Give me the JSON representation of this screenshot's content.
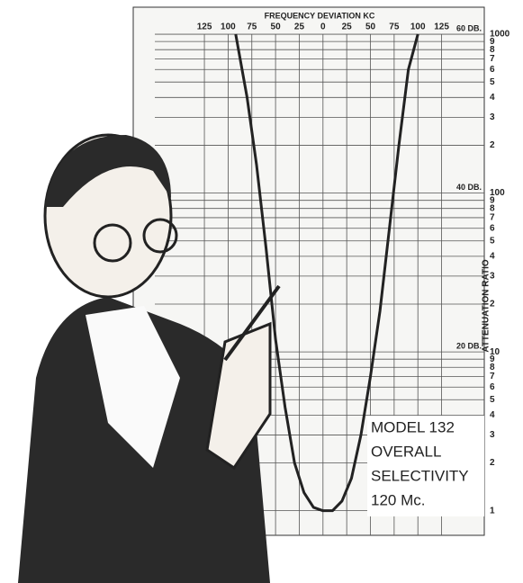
{
  "chart_data": {
    "type": "line",
    "title": "FREQUENCY DEVIATION KC",
    "y_label": "ATTENUATION RATIO",
    "annotations": [
      "60 DB.",
      "40 DB.",
      "20 DB."
    ],
    "model_box": [
      "MODEL 132",
      "OVERALL",
      "SELECTIVITY",
      "120 Mc."
    ],
    "log_y": true,
    "grid": true,
    "xlim": [
      -200,
      170
    ],
    "ylim": [
      0.7,
      1480
    ],
    "xticks": [
      {
        "value": -125,
        "label": "125"
      },
      {
        "value": -100,
        "label": "100"
      },
      {
        "value": -75,
        "label": "75"
      },
      {
        "value": -50,
        "label": "50"
      },
      {
        "value": -25,
        "label": "25"
      },
      0,
      25,
      50,
      75,
      100,
      125
    ],
    "yticks": [
      1,
      2,
      3,
      4,
      5,
      6,
      7,
      8,
      9,
      10,
      {
        "value": 20,
        "label": "2"
      },
      {
        "value": 30,
        "label": "3"
      },
      {
        "value": 40,
        "label": "4"
      },
      {
        "value": 50,
        "label": "5"
      },
      {
        "value": 60,
        "label": "6"
      },
      {
        "value": 70,
        "label": "7"
      },
      {
        "value": 80,
        "label": "8"
      },
      {
        "value": 90,
        "label": "9"
      },
      100,
      {
        "value": 200,
        "label": "2"
      },
      {
        "value": 300,
        "label": "3"
      },
      {
        "value": 400,
        "label": "4"
      },
      {
        "value": 500,
        "label": "5"
      },
      {
        "value": 600,
        "label": "6"
      },
      {
        "value": 700,
        "label": "7"
      },
      {
        "value": 800,
        "label": "8"
      },
      {
        "value": 900,
        "label": "9"
      },
      1000
    ],
    "dB_levels": [
      1000,
      100,
      10
    ],
    "series": [
      {
        "name": "Selectivity",
        "color": "#222222",
        "x": [
          -92,
          -80,
          -70,
          -60,
          -50,
          -40,
          -30,
          -20,
          -10,
          0,
          10,
          20,
          30,
          40,
          50,
          60,
          70,
          80,
          90,
          100
        ],
        "values": [
          1000,
          400,
          150,
          45,
          12,
          4.5,
          2,
          1.3,
          1.05,
          1,
          1,
          1.15,
          1.6,
          3,
          7,
          18,
          60,
          200,
          600,
          1000
        ]
      }
    ]
  }
}
